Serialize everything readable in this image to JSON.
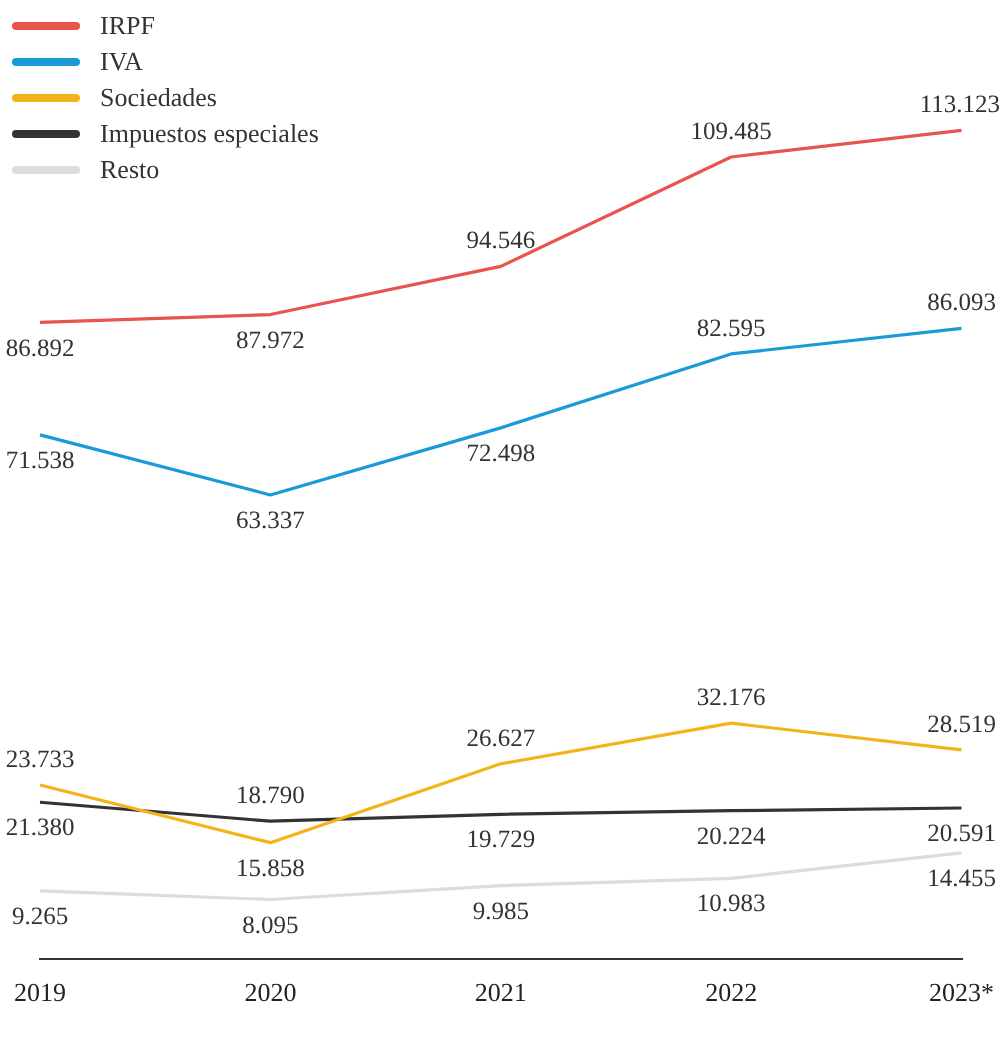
{
  "chart_data": {
    "type": "line",
    "categories": [
      "2019",
      "2020",
      "2021",
      "2022",
      "2023*"
    ],
    "series": [
      {
        "name": "IRPF",
        "color": "#e8544e",
        "values": [
          86.892,
          87.972,
          94.546,
          109.485,
          113.123
        ],
        "value_labels": [
          "86.892",
          "87.972",
          "94.546",
          "109.485",
          "113.123"
        ]
      },
      {
        "name": "IVA",
        "color": "#1a9ad6",
        "values": [
          71.538,
          63.337,
          72.498,
          82.595,
          86.093
        ],
        "value_labels": [
          "71.538",
          "63.337",
          "72.498",
          "82.595",
          "86.093"
        ]
      },
      {
        "name": "Sociedades",
        "color": "#f2b519",
        "values": [
          23.733,
          15.858,
          26.627,
          32.176,
          28.519
        ],
        "value_labels": [
          "23.733",
          "15.858",
          "26.627",
          "32.176",
          "28.519"
        ]
      },
      {
        "name": "Impuestos especiales",
        "color": "#333333",
        "values": [
          21.38,
          18.79,
          19.729,
          20.224,
          20.591
        ],
        "value_labels": [
          "21.380",
          "18.790",
          "19.729",
          "20.224",
          "20.591"
        ]
      },
      {
        "name": "Resto",
        "color": "#dcdcdc",
        "values": [
          9.265,
          8.095,
          9.985,
          10.983,
          14.455
        ],
        "value_labels": [
          "9.265",
          "8.095",
          "9.985",
          "10.983",
          "14.455"
        ]
      }
    ],
    "tick_labels": "x",
    "legend": "top left",
    "grid": false,
    "marker": "none",
    "line_style": "solid"
  }
}
